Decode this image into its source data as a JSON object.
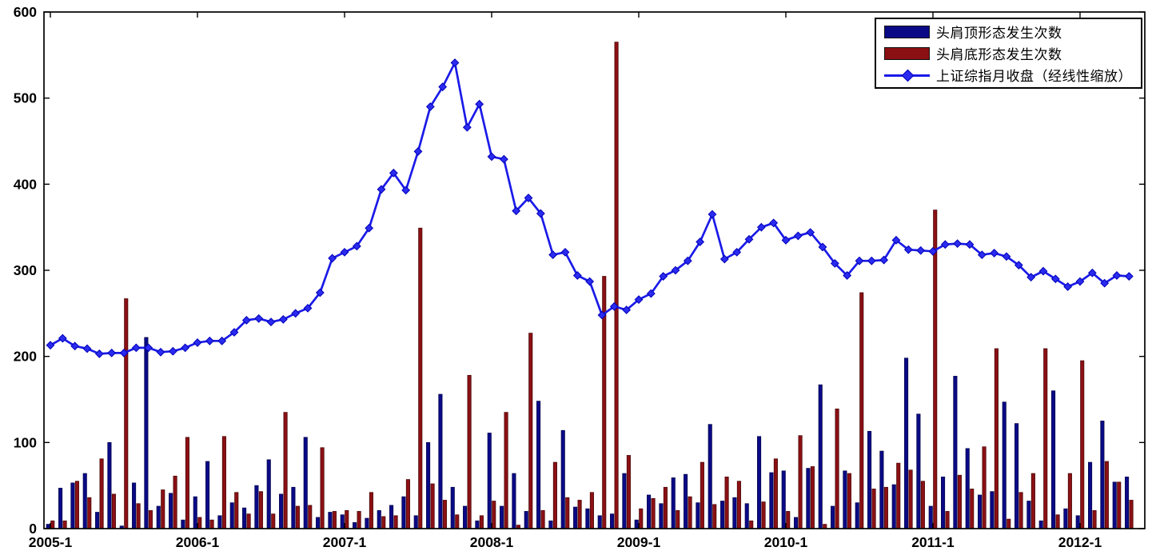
{
  "chart_data": {
    "type": "combo-bar-line",
    "title": "",
    "xlabel": "",
    "ylabel": "",
    "ylim": [
      0,
      600
    ],
    "yticks": [
      0,
      100,
      200,
      300,
      400,
      500,
      600
    ],
    "ytick_labels": [
      "0",
      "100",
      "200",
      "300",
      "400",
      "500",
      "600"
    ],
    "xtick_indices": [
      0,
      12,
      24,
      36,
      48,
      60,
      72,
      84
    ],
    "xtick_labels": [
      "2005-1",
      "2006-1",
      "2007-1",
      "2008-1",
      "2009-1",
      "2010-1",
      "2011-1",
      "2012-1"
    ],
    "grid": false,
    "legend_position": "top-right",
    "categories": [
      "2005-1",
      "2005-2",
      "2005-3",
      "2005-4",
      "2005-5",
      "2005-6",
      "2005-7",
      "2005-8",
      "2005-9",
      "2005-10",
      "2005-11",
      "2005-12",
      "2006-1",
      "2006-2",
      "2006-3",
      "2006-4",
      "2006-5",
      "2006-6",
      "2006-7",
      "2006-8",
      "2006-9",
      "2006-10",
      "2006-11",
      "2006-12",
      "2007-1",
      "2007-2",
      "2007-3",
      "2007-4",
      "2007-5",
      "2007-6",
      "2007-7",
      "2007-8",
      "2007-9",
      "2007-10",
      "2007-11",
      "2007-12",
      "2008-1",
      "2008-2",
      "2008-3",
      "2008-4",
      "2008-5",
      "2008-6",
      "2008-7",
      "2008-8",
      "2008-9",
      "2008-10",
      "2008-11",
      "2008-12",
      "2009-1",
      "2009-2",
      "2009-3",
      "2009-4",
      "2009-5",
      "2009-6",
      "2009-7",
      "2009-8",
      "2009-9",
      "2009-10",
      "2009-11",
      "2009-12",
      "2010-1",
      "2010-2",
      "2010-3",
      "2010-4",
      "2010-5",
      "2010-6",
      "2010-7",
      "2010-8",
      "2010-9",
      "2010-10",
      "2010-11",
      "2010-12",
      "2011-1",
      "2011-2",
      "2011-3",
      "2011-4",
      "2011-5",
      "2011-6",
      "2011-7",
      "2011-8",
      "2011-9",
      "2011-10",
      "2011-11",
      "2011-12",
      "2012-1",
      "2012-2",
      "2012-3",
      "2012-4",
      "2012-5"
    ],
    "series": [
      {
        "name": "头肩顶形态发生次数",
        "type": "bar",
        "color": "#0a0a87",
        "edge_color": "#06064f",
        "values": [
          5,
          47,
          53,
          64,
          19,
          100,
          3,
          53,
          222,
          26,
          41,
          10,
          37,
          78,
          15,
          30,
          24,
          50,
          80,
          40,
          48,
          106,
          13,
          19,
          16,
          7,
          12,
          21,
          27,
          37,
          15,
          100,
          156,
          48,
          26,
          9,
          111,
          26,
          64,
          20,
          148,
          9,
          114,
          25,
          23,
          15,
          17,
          64,
          10,
          39,
          29,
          59,
          63,
          30,
          121,
          32,
          36,
          29,
          107,
          65,
          67,
          13,
          70,
          167,
          26,
          67,
          30,
          113,
          90,
          51,
          198,
          133,
          26,
          60,
          177,
          93,
          39,
          43,
          147,
          122,
          32,
          9,
          160,
          23,
          15,
          77,
          125,
          54,
          60
        ]
      },
      {
        "name": "头肩底形态发生次数",
        "type": "bar",
        "color": "#8b1014",
        "edge_color": "#4d0808",
        "values": [
          9,
          9,
          55,
          36,
          81,
          40,
          267,
          29,
          21,
          45,
          61,
          106,
          13,
          10,
          107,
          42,
          17,
          43,
          17,
          135,
          26,
          27,
          94,
          20,
          21,
          20,
          42,
          14,
          15,
          57,
          349,
          52,
          33,
          16,
          178,
          15,
          32,
          135,
          4,
          227,
          21,
          77,
          36,
          33,
          42,
          293,
          565,
          85,
          23,
          35,
          48,
          21,
          37,
          77,
          28,
          60,
          55,
          9,
          31,
          81,
          20,
          108,
          72,
          5,
          139,
          64,
          274,
          46,
          48,
          76,
          68,
          55,
          370,
          20,
          62,
          46,
          95,
          209,
          11,
          42,
          64,
          209,
          16,
          64,
          195,
          21,
          78,
          54,
          33
        ]
      },
      {
        "name": "上证综指月收盘（经线性缩放）",
        "type": "line",
        "color": "#1a1ae8",
        "marker": "diamond",
        "marker_color": "#2b2bf0",
        "values": [
          213,
          221,
          212,
          209,
          203,
          204,
          204,
          210,
          210,
          205,
          206,
          210,
          216,
          218,
          218,
          228,
          242,
          244,
          240,
          243,
          250,
          256,
          274,
          314,
          321,
          328,
          349,
          394,
          413,
          393,
          438,
          490,
          513,
          541,
          466,
          493,
          432,
          429,
          369,
          384,
          366,
          318,
          321,
          294,
          287,
          248,
          258,
          254,
          266,
          273,
          293,
          300,
          311,
          333,
          365,
          313,
          321,
          336,
          350,
          355,
          335,
          340,
          344,
          327,
          308,
          294,
          311,
          311,
          312,
          335,
          324,
          323,
          322,
          330,
          331,
          330,
          318,
          320,
          316,
          306,
          292,
          299,
          290,
          281,
          287,
          297,
          285,
          294,
          293
        ]
      }
    ]
  }
}
